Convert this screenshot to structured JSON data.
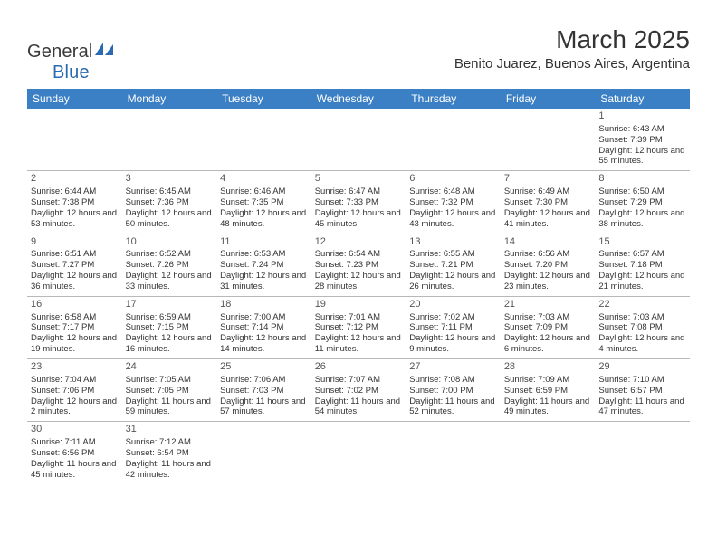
{
  "brand": {
    "name_part1": "General",
    "name_part2": "Blue",
    "icon_color": "#2a6ab0"
  },
  "title": "March 2025",
  "location": "Benito Juarez, Buenos Aires, Argentina",
  "header_bg": "#3b7fc4",
  "header_fg": "#ffffff",
  "grid_line_color": "#b8b8b8",
  "text_color": "#333333",
  "day_headers": [
    "Sunday",
    "Monday",
    "Tuesday",
    "Wednesday",
    "Thursday",
    "Friday",
    "Saturday"
  ],
  "weeks": [
    [
      null,
      null,
      null,
      null,
      null,
      null,
      {
        "n": "1",
        "sr": "6:43 AM",
        "ss": "7:39 PM",
        "dl": "12 hours and 55 minutes."
      }
    ],
    [
      {
        "n": "2",
        "sr": "6:44 AM",
        "ss": "7:38 PM",
        "dl": "12 hours and 53 minutes."
      },
      {
        "n": "3",
        "sr": "6:45 AM",
        "ss": "7:36 PM",
        "dl": "12 hours and 50 minutes."
      },
      {
        "n": "4",
        "sr": "6:46 AM",
        "ss": "7:35 PM",
        "dl": "12 hours and 48 minutes."
      },
      {
        "n": "5",
        "sr": "6:47 AM",
        "ss": "7:33 PM",
        "dl": "12 hours and 45 minutes."
      },
      {
        "n": "6",
        "sr": "6:48 AM",
        "ss": "7:32 PM",
        "dl": "12 hours and 43 minutes."
      },
      {
        "n": "7",
        "sr": "6:49 AM",
        "ss": "7:30 PM",
        "dl": "12 hours and 41 minutes."
      },
      {
        "n": "8",
        "sr": "6:50 AM",
        "ss": "7:29 PM",
        "dl": "12 hours and 38 minutes."
      }
    ],
    [
      {
        "n": "9",
        "sr": "6:51 AM",
        "ss": "7:27 PM",
        "dl": "12 hours and 36 minutes."
      },
      {
        "n": "10",
        "sr": "6:52 AM",
        "ss": "7:26 PM",
        "dl": "12 hours and 33 minutes."
      },
      {
        "n": "11",
        "sr": "6:53 AM",
        "ss": "7:24 PM",
        "dl": "12 hours and 31 minutes."
      },
      {
        "n": "12",
        "sr": "6:54 AM",
        "ss": "7:23 PM",
        "dl": "12 hours and 28 minutes."
      },
      {
        "n": "13",
        "sr": "6:55 AM",
        "ss": "7:21 PM",
        "dl": "12 hours and 26 minutes."
      },
      {
        "n": "14",
        "sr": "6:56 AM",
        "ss": "7:20 PM",
        "dl": "12 hours and 23 minutes."
      },
      {
        "n": "15",
        "sr": "6:57 AM",
        "ss": "7:18 PM",
        "dl": "12 hours and 21 minutes."
      }
    ],
    [
      {
        "n": "16",
        "sr": "6:58 AM",
        "ss": "7:17 PM",
        "dl": "12 hours and 19 minutes."
      },
      {
        "n": "17",
        "sr": "6:59 AM",
        "ss": "7:15 PM",
        "dl": "12 hours and 16 minutes."
      },
      {
        "n": "18",
        "sr": "7:00 AM",
        "ss": "7:14 PM",
        "dl": "12 hours and 14 minutes."
      },
      {
        "n": "19",
        "sr": "7:01 AM",
        "ss": "7:12 PM",
        "dl": "12 hours and 11 minutes."
      },
      {
        "n": "20",
        "sr": "7:02 AM",
        "ss": "7:11 PM",
        "dl": "12 hours and 9 minutes."
      },
      {
        "n": "21",
        "sr": "7:03 AM",
        "ss": "7:09 PM",
        "dl": "12 hours and 6 minutes."
      },
      {
        "n": "22",
        "sr": "7:03 AM",
        "ss": "7:08 PM",
        "dl": "12 hours and 4 minutes."
      }
    ],
    [
      {
        "n": "23",
        "sr": "7:04 AM",
        "ss": "7:06 PM",
        "dl": "12 hours and 2 minutes."
      },
      {
        "n": "24",
        "sr": "7:05 AM",
        "ss": "7:05 PM",
        "dl": "11 hours and 59 minutes."
      },
      {
        "n": "25",
        "sr": "7:06 AM",
        "ss": "7:03 PM",
        "dl": "11 hours and 57 minutes."
      },
      {
        "n": "26",
        "sr": "7:07 AM",
        "ss": "7:02 PM",
        "dl": "11 hours and 54 minutes."
      },
      {
        "n": "27",
        "sr": "7:08 AM",
        "ss": "7:00 PM",
        "dl": "11 hours and 52 minutes."
      },
      {
        "n": "28",
        "sr": "7:09 AM",
        "ss": "6:59 PM",
        "dl": "11 hours and 49 minutes."
      },
      {
        "n": "29",
        "sr": "7:10 AM",
        "ss": "6:57 PM",
        "dl": "11 hours and 47 minutes."
      }
    ],
    [
      {
        "n": "30",
        "sr": "7:11 AM",
        "ss": "6:56 PM",
        "dl": "11 hours and 45 minutes."
      },
      {
        "n": "31",
        "sr": "7:12 AM",
        "ss": "6:54 PM",
        "dl": "11 hours and 42 minutes."
      },
      null,
      null,
      null,
      null,
      null
    ]
  ],
  "labels": {
    "sunrise": "Sunrise:",
    "sunset": "Sunset:",
    "daylight": "Daylight:"
  }
}
